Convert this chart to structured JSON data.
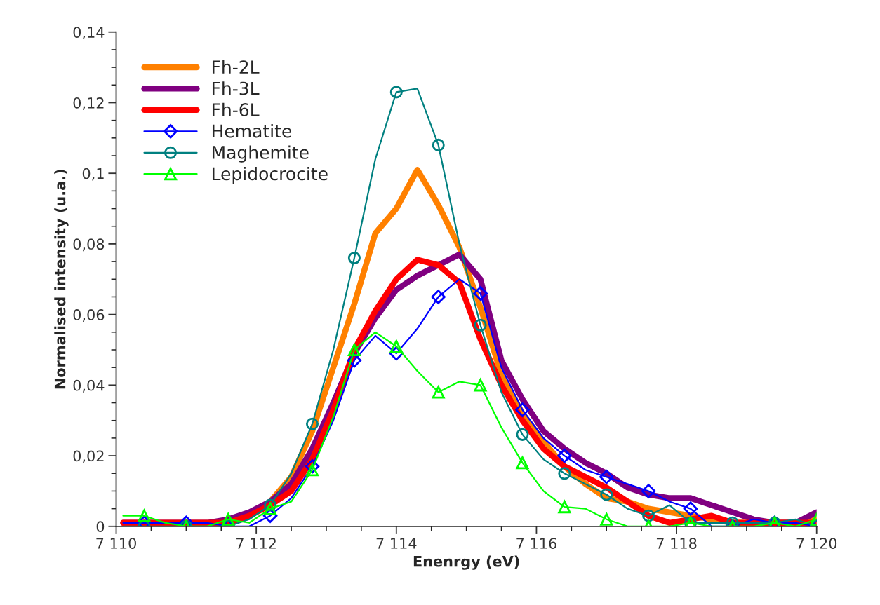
{
  "chart_data": {
    "type": "line",
    "xlabel": "Enenrgy (eV)",
    "ylabel": "Normalised intensity (u.a.)",
    "x": [
      7110.1,
      7110.4,
      7110.7,
      7111.0,
      7111.3,
      7111.6,
      7111.9,
      7112.2,
      7112.5,
      7112.8,
      7113.1,
      7113.4,
      7113.7,
      7114.0,
      7114.3,
      7114.6,
      7114.9,
      7115.2,
      7115.5,
      7115.8,
      7116.1,
      7116.4,
      7116.7,
      7117.0,
      7117.3,
      7117.6,
      7117.9,
      7118.2,
      7118.5,
      7118.8,
      7119.1,
      7119.4,
      7119.7,
      7120.0
    ],
    "series": [
      {
        "name": "Fh-2L",
        "color": "#ff8000",
        "marker": "none",
        "values": [
          null,
          null,
          null,
          null,
          null,
          null,
          0.003,
          0.007,
          0.014,
          0.027,
          0.045,
          0.063,
          0.083,
          0.09,
          0.101,
          0.091,
          0.079,
          0.062,
          0.043,
          0.032,
          0.024,
          0.017,
          0.012,
          0.008,
          0.007,
          0.005,
          0.004,
          0.003,
          0.002,
          0.001,
          0.001,
          0.001,
          0.001,
          0.002
        ]
      },
      {
        "name": "Fh-3L",
        "color": "#800080",
        "marker": "none",
        "values": [
          0.001,
          0.001,
          0.001,
          0.001,
          0.001,
          0.002,
          0.004,
          0.007,
          0.012,
          0.022,
          0.035,
          0.049,
          0.059,
          0.067,
          0.071,
          0.074,
          0.077,
          0.07,
          0.047,
          0.036,
          0.027,
          0.022,
          0.018,
          0.015,
          0.011,
          0.009,
          0.008,
          0.008,
          0.006,
          0.004,
          0.002,
          0.001,
          0.001,
          0.004
        ]
      },
      {
        "name": "Fh-6L",
        "color": "#ff0000",
        "marker": "none",
        "values": [
          0.001,
          0.001,
          0.001,
          0.001,
          0.001,
          0.001,
          0.003,
          0.006,
          0.01,
          0.019,
          0.033,
          0.05,
          0.061,
          0.07,
          0.0755,
          0.074,
          0.069,
          0.053,
          0.04,
          0.03,
          0.022,
          0.017,
          0.014,
          0.011,
          0.007,
          0.003,
          0.001,
          0.002,
          0.003,
          0.001,
          0.001,
          0.001,
          0.001,
          0.001
        ]
      },
      {
        "name": "Hematite",
        "color": "#0000ff",
        "marker": "diamond",
        "values": [
          0.001,
          0.001,
          0.001,
          0.001,
          0.001,
          0.0,
          0.0,
          0.003,
          0.008,
          0.017,
          0.03,
          0.047,
          0.054,
          0.049,
          0.056,
          0.065,
          0.07,
          0.066,
          0.045,
          0.033,
          0.025,
          0.02,
          0.016,
          0.014,
          0.012,
          0.01,
          0.007,
          0.005,
          0.0,
          0.0,
          0.002,
          0.001,
          0.001,
          0.0
        ]
      },
      {
        "name": "Maghemite",
        "color": "#008080",
        "marker": "circle",
        "values": [
          0.0,
          0.0,
          0.0,
          0.0,
          0.0,
          0.0,
          0.002,
          0.006,
          0.015,
          0.029,
          0.05,
          0.076,
          0.104,
          0.123,
          0.124,
          0.108,
          0.08,
          0.057,
          0.038,
          0.026,
          0.019,
          0.015,
          0.012,
          0.009,
          0.005,
          0.003,
          0.006,
          0.001,
          0.001,
          0.001,
          0.001,
          0.001,
          0.002,
          0.0
        ]
      },
      {
        "name": "Lepidocrocite",
        "color": "#00ff00",
        "marker": "triangle",
        "values": [
          0.003,
          0.003,
          0.001,
          0.0,
          0.0,
          0.002,
          0.001,
          0.005,
          0.007,
          0.016,
          0.031,
          0.05,
          0.055,
          0.051,
          0.044,
          0.038,
          0.041,
          0.04,
          0.028,
          0.018,
          0.01,
          0.0055,
          0.005,
          0.002,
          0.0,
          0.0,
          0.0,
          0.001,
          0.0,
          0.0,
          0.0,
          0.001,
          0.0,
          0.002
        ]
      }
    ],
    "xlim": [
      7110,
      7120
    ],
    "xticks": [
      {
        "value": 7110,
        "label": "7 110"
      },
      {
        "value": 7112,
        "label": "7 112"
      },
      {
        "value": 7114,
        "label": "7 114"
      },
      {
        "value": 7116,
        "label": "7 116"
      },
      {
        "value": 7118,
        "label": "7 118"
      },
      {
        "value": 7120,
        "label": "7 120"
      }
    ],
    "ylim": [
      0,
      0.14
    ],
    "yticks": [
      0,
      {
        "value": 0.02,
        "label": "0,02"
      },
      {
        "value": 0.04,
        "label": "0,04"
      },
      {
        "value": 0.06,
        "label": "0,06"
      },
      {
        "value": 0.08,
        "label": "0,08"
      },
      {
        "value": 0.1,
        "label": "0,1"
      },
      {
        "value": 0.12,
        "label": "0,12"
      },
      {
        "value": 0.14,
        "label": "0,14"
      }
    ],
    "grid": false,
    "legend": "top left"
  }
}
